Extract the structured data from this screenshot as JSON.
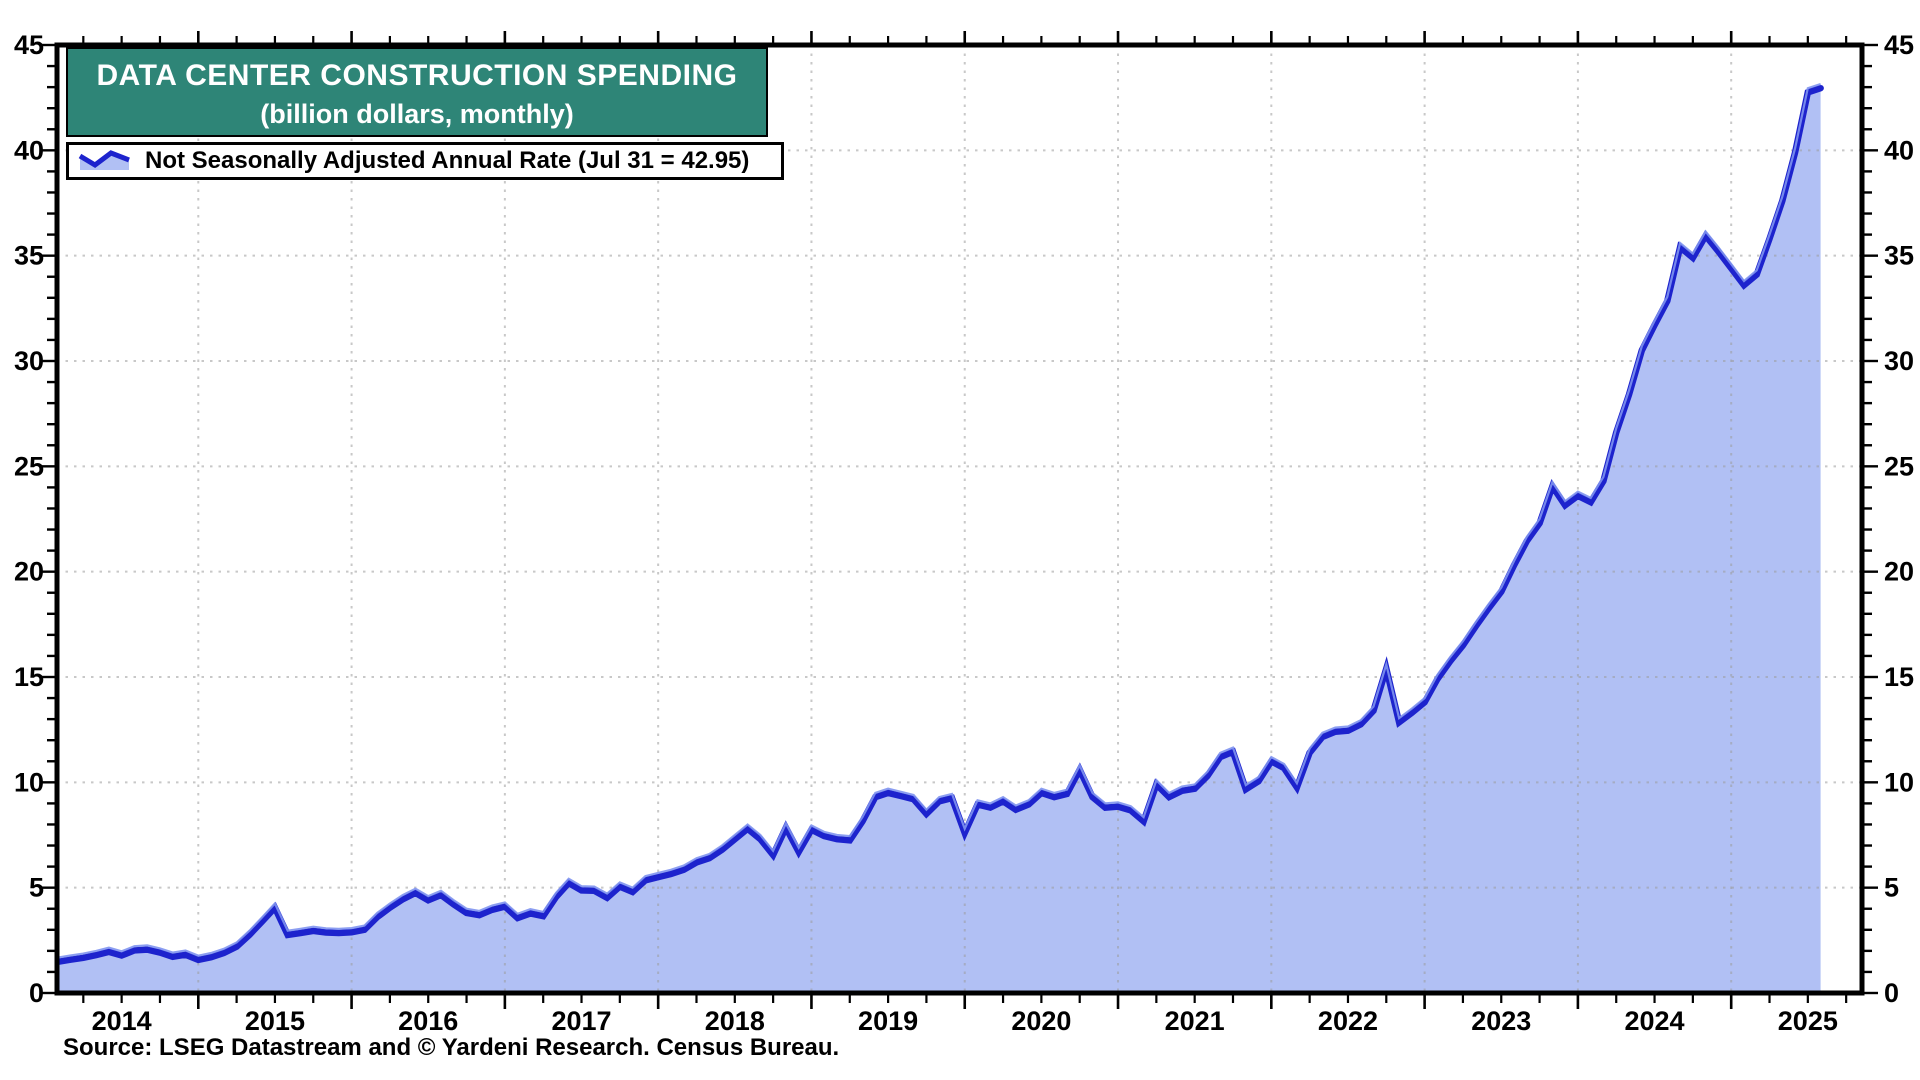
{
  "title": {
    "line1": "DATA CENTER CONSTRUCTION SPENDING",
    "line2": "(billion dollars, monthly)"
  },
  "legend": {
    "label": "Not Seasonally Adjusted Annual Rate (Jul 31 = 42.95)"
  },
  "source": "Source: LSEG Datastream and © Yardeni Research. Census Bureau.",
  "colors": {
    "line": "#1d23cd",
    "line_highlight": "#8094f0",
    "fill": "#b1c0f4",
    "title_box_bg": "#2e8577",
    "title_text": "#ffffff",
    "grid": "#9a9a9a",
    "axis": "#000000"
  },
  "chart_data": {
    "type": "area",
    "title": "DATA CENTER CONSTRUCTION SPENDING",
    "subtitle": "(billion dollars, monthly)",
    "xlabel": "",
    "ylabel": "billion dollars (NSA annual rate)",
    "x_start": "2014-01",
    "x_end": "2025-07",
    "frequency": "monthly",
    "points_plotted_at": "month-end",
    "ylim": [
      0,
      45
    ],
    "y_tick_step": 5,
    "y_minor_tick_step": 1,
    "x_tick_labels": [
      "2014",
      "2015",
      "2016",
      "2017",
      "2018",
      "2019",
      "2020",
      "2021",
      "2022",
      "2023",
      "2024",
      "2025"
    ],
    "grid": "dotted",
    "legend_position": "top-left",
    "series": [
      {
        "name": "Not Seasonally Adjusted Annual Rate",
        "last_point_label": "Jul 31 = 42.95",
        "values": [
          1.48,
          1.58,
          1.67,
          1.8,
          1.95,
          1.78,
          2.02,
          2.06,
          1.92,
          1.72,
          1.82,
          1.57,
          1.7,
          1.9,
          2.2,
          2.76,
          3.4,
          4.05,
          2.76,
          2.85,
          2.95,
          2.87,
          2.85,
          2.88,
          3.0,
          3.6,
          4.05,
          4.45,
          4.75,
          4.4,
          4.65,
          4.2,
          3.8,
          3.7,
          3.95,
          4.1,
          3.56,
          3.78,
          3.65,
          4.55,
          5.22,
          4.87,
          4.85,
          4.52,
          5.05,
          4.8,
          5.35,
          5.5,
          5.65,
          5.85,
          6.2,
          6.4,
          6.8,
          7.3,
          7.8,
          7.3,
          6.55,
          7.85,
          6.7,
          7.75,
          7.45,
          7.3,
          7.25,
          8.15,
          9.3,
          9.5,
          9.35,
          9.2,
          8.5,
          9.1,
          9.25,
          7.6,
          8.95,
          8.8,
          9.1,
          8.7,
          8.95,
          9.5,
          9.3,
          9.45,
          10.6,
          9.3,
          8.8,
          8.85,
          8.67,
          8.15,
          9.9,
          9.3,
          9.6,
          9.7,
          10.3,
          11.2,
          11.45,
          9.67,
          10.05,
          11.0,
          10.67,
          9.76,
          11.4,
          12.15,
          12.4,
          12.45,
          12.75,
          13.4,
          15.4,
          12.85,
          13.3,
          13.8,
          14.9,
          15.75,
          16.5,
          17.4,
          18.25,
          19.05,
          20.3,
          21.45,
          22.3,
          24.05,
          23.15,
          23.6,
          23.3,
          24.3,
          26.6,
          28.4,
          30.5,
          31.7,
          32.85,
          35.4,
          34.9,
          35.95,
          35.2,
          34.4,
          33.6,
          34.1,
          35.8,
          37.6,
          39.9,
          42.75,
          42.95
        ]
      }
    ]
  }
}
